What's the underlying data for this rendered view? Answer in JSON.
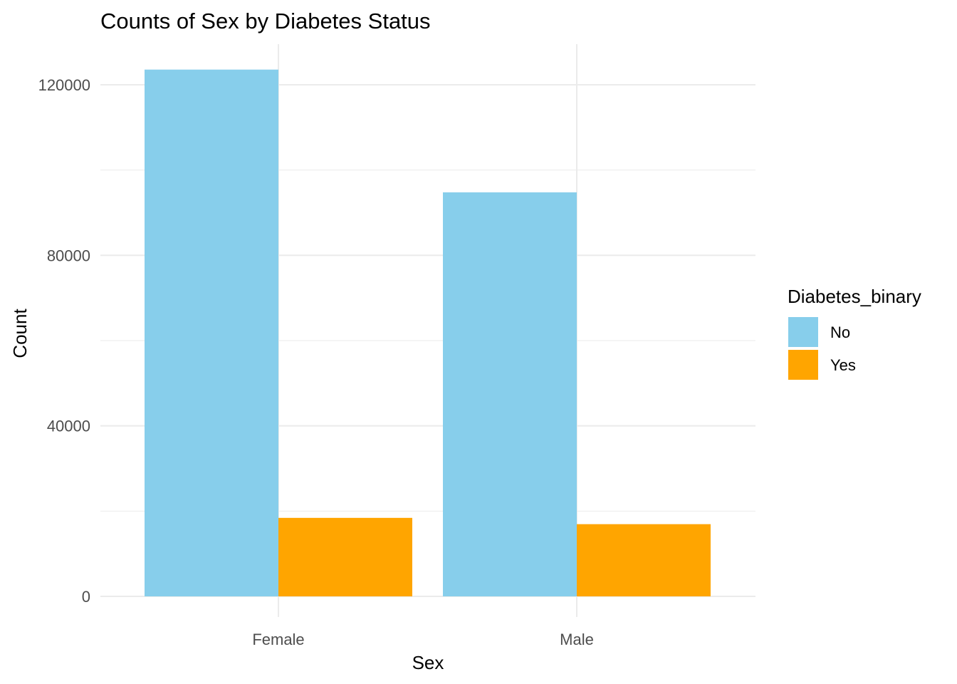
{
  "chart_data": {
    "type": "bar",
    "title": "Counts of Sex by Diabetes Status",
    "xlabel": "Sex",
    "ylabel": "Count",
    "categories": [
      "Female",
      "Male"
    ],
    "series": [
      {
        "name": "No",
        "color": "#87CEEB",
        "values": [
          123564,
          94770
        ]
      },
      {
        "name": "Yes",
        "color": "#FFA500",
        "values": [
          18411,
          16935
        ]
      }
    ],
    "ylim": [
      0,
      130000
    ],
    "yticks": [
      0,
      40000,
      80000,
      120000
    ],
    "ytick_labels": [
      "0",
      "40000",
      "80000",
      "120000"
    ],
    "grid": true,
    "legend": {
      "title": "Diabetes_binary",
      "position": "right"
    }
  }
}
